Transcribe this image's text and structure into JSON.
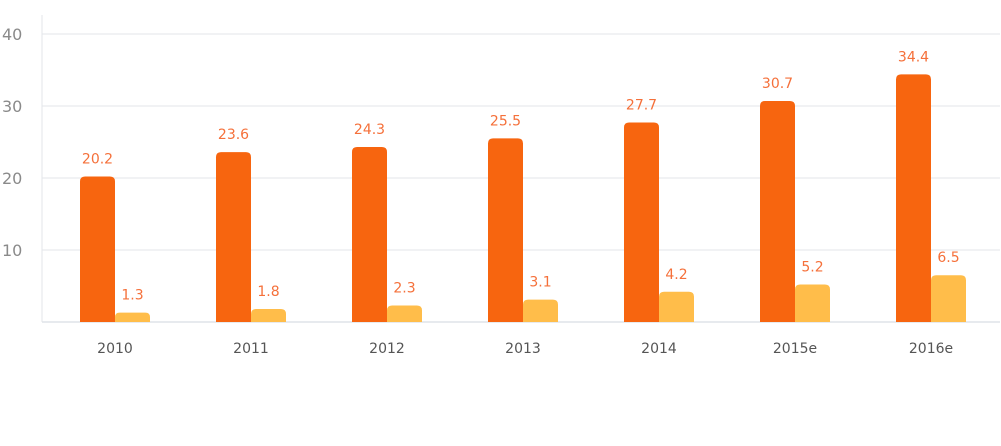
{
  "chart_data": {
    "type": "bar",
    "title": "",
    "xlabel": "",
    "ylabel": "",
    "categories": [
      "2010",
      "2011",
      "2012",
      "2013",
      "2014",
      "2015e",
      "2016e"
    ],
    "series": [
      {
        "values": [
          20.2,
          23.6,
          24.3,
          25.5,
          27.7,
          30.7,
          34.4
        ],
        "color": "#F7650F"
      },
      {
        "values": [
          1.3,
          1.8,
          2.3,
          3.1,
          4.2,
          5.2,
          6.5
        ],
        "color": "#FFBD4A"
      }
    ],
    "ylim": [
      0,
      40
    ],
    "yticks": [
      10,
      20,
      30,
      40
    ],
    "grid": true,
    "data_labels": true,
    "label_color": "#F5703A",
    "legend": "none"
  }
}
